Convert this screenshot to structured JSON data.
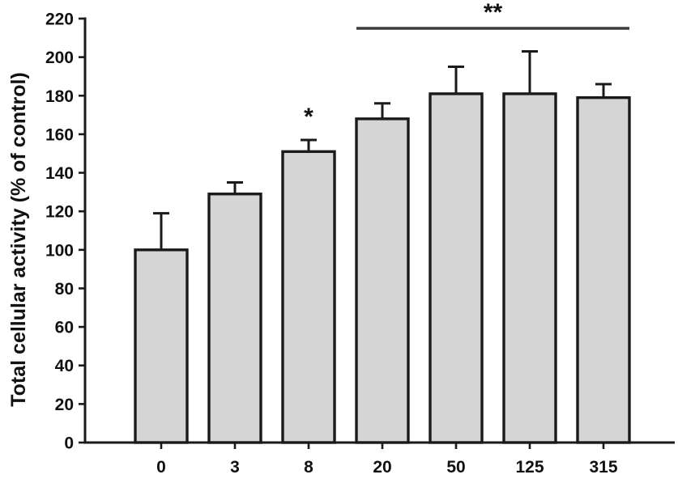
{
  "chart_data": {
    "type": "bar",
    "title": "",
    "xlabel": "",
    "ylabel": "Total cellular activity (% of control)",
    "categories": [
      "0",
      "3",
      "8",
      "20",
      "50",
      "125",
      "315"
    ],
    "values": [
      100,
      129,
      151,
      168,
      181,
      181,
      179
    ],
    "errors": [
      19,
      6,
      6,
      8,
      14,
      22,
      7
    ],
    "error_direction": "upper-only",
    "ylim": [
      0,
      220
    ],
    "ytick_step": 20,
    "yticks": [
      0,
      20,
      40,
      60,
      80,
      100,
      120,
      140,
      160,
      180,
      200,
      220
    ],
    "grid": false,
    "legend": null,
    "colors": {
      "background": "#ffffff",
      "bar_fill": "#d5d5d5",
      "bar_stroke": "#1a1a1a",
      "axis": "#1a1a1a",
      "error_bar": "#1a1a1a",
      "sig_line": "#3c3c3c",
      "text": "#111111"
    },
    "annotations": [
      {
        "type": "asterisk",
        "label": "*",
        "bar_index": 2
      },
      {
        "type": "sig-line",
        "label": "**",
        "from_index": 3,
        "to_index": 6
      }
    ]
  }
}
